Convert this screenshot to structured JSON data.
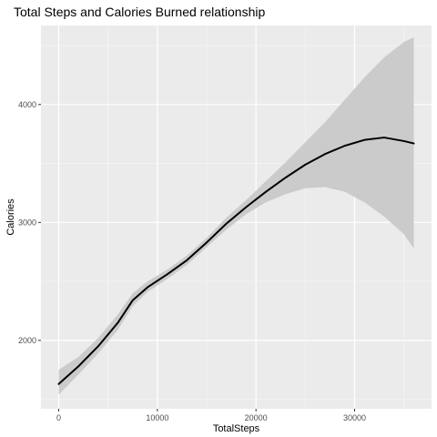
{
  "chart_data": {
    "type": "line",
    "title": "Total Steps and Calories Burned relationship",
    "xlabel": "TotalSteps",
    "ylabel": "Calories",
    "xlim": [
      -1800,
      37800
    ],
    "ylim": [
      1420,
      4670
    ],
    "x_ticks": [
      0,
      10000,
      20000,
      30000
    ],
    "x_tick_labels": [
      "0",
      "10000",
      "20000",
      "30000"
    ],
    "y_ticks": [
      2000,
      3000,
      4000
    ],
    "y_tick_labels": [
      "2000",
      "3000",
      "4000"
    ],
    "x_minor": [
      5000,
      15000,
      25000,
      35000
    ],
    "y_minor": [
      1500,
      2500,
      3500,
      4500
    ],
    "grid": true,
    "legend": "none",
    "series": [
      {
        "x": [
          0,
          2000,
          4000,
          6000,
          7500,
          9000,
          11000,
          13000,
          15000,
          17000,
          19000,
          21000,
          23000,
          25000,
          27000,
          29000,
          31000,
          33000,
          35000,
          36000
        ],
        "y": [
          1630,
          1780,
          1950,
          2150,
          2340,
          2450,
          2560,
          2680,
          2830,
          2990,
          3130,
          3260,
          3380,
          3490,
          3580,
          3650,
          3700,
          3720,
          3690,
          3670
        ],
        "lower": [
          1540,
          1710,
          1890,
          2090,
          2290,
          2410,
          2520,
          2640,
          2790,
          2940,
          3070,
          3170,
          3240,
          3290,
          3300,
          3260,
          3170,
          3050,
          2900,
          2780
        ],
        "upper": [
          1750,
          1860,
          2020,
          2220,
          2400,
          2500,
          2600,
          2720,
          2870,
          3040,
          3190,
          3350,
          3510,
          3680,
          3850,
          4040,
          4230,
          4400,
          4530,
          4570
        ]
      }
    ]
  },
  "colors": {
    "panel_background": "#EBEBEB",
    "grid_major": "#FFFFFF",
    "ribbon": "#CBCBCB",
    "line": "#000000",
    "tick_label": "#4D4D4D",
    "tick_mark": "#333333"
  }
}
